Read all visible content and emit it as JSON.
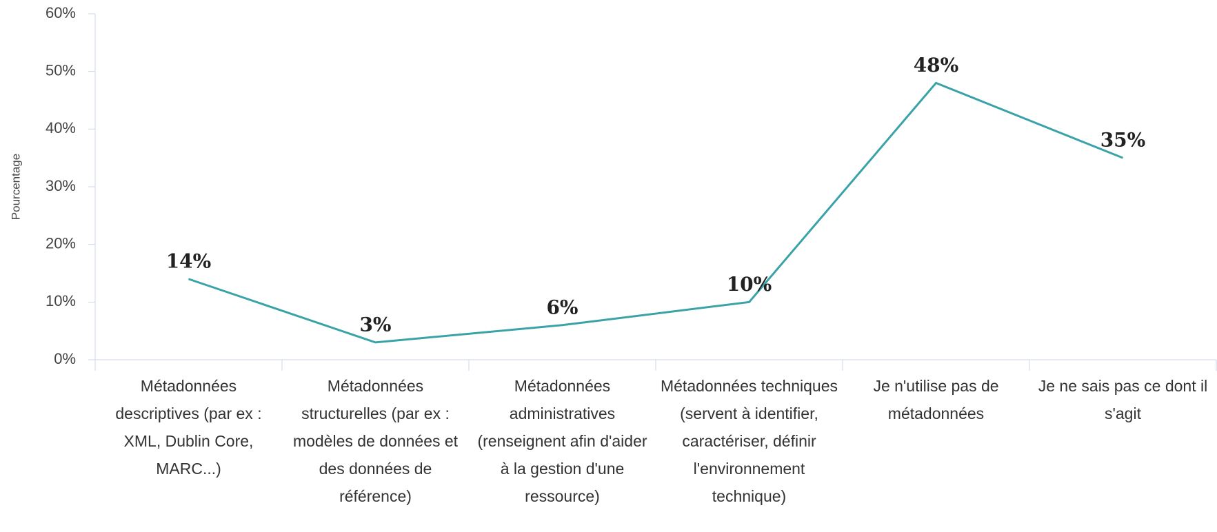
{
  "chart_data": {
    "type": "line",
    "ylabel": "Pourcentage",
    "categories": [
      "Métadonnées descriptives (par ex : XML, Dublin Core, MARC...)",
      "Métadonnées structurelles (par ex : modèles de données et des données de référence)",
      "Métadonnées administratives (renseignent afin d'aider à la gestion d'une ressource)",
      "Métadonnées techniques (servent à identifier, caractériser, définir l'environnement technique)",
      "Je n'utilise pas de métadonnées",
      "Je ne sais pas ce dont il s'agit"
    ],
    "values": [
      14,
      3,
      6,
      10,
      48,
      35
    ],
    "value_labels": [
      "14%",
      "3%",
      "6%",
      "10%",
      "48%",
      "35%"
    ],
    "color": "#3aa3a8",
    "ylim": [
      0,
      60
    ],
    "yticks": [
      {
        "value": 0,
        "label": "0%"
      },
      {
        "value": 10,
        "label": "10%"
      },
      {
        "value": 20,
        "label": "20%"
      },
      {
        "value": 30,
        "label": "30%"
      },
      {
        "value": 40,
        "label": "40%"
      },
      {
        "value": 50,
        "label": "50%"
      },
      {
        "value": 60,
        "label": "60%"
      }
    ]
  }
}
